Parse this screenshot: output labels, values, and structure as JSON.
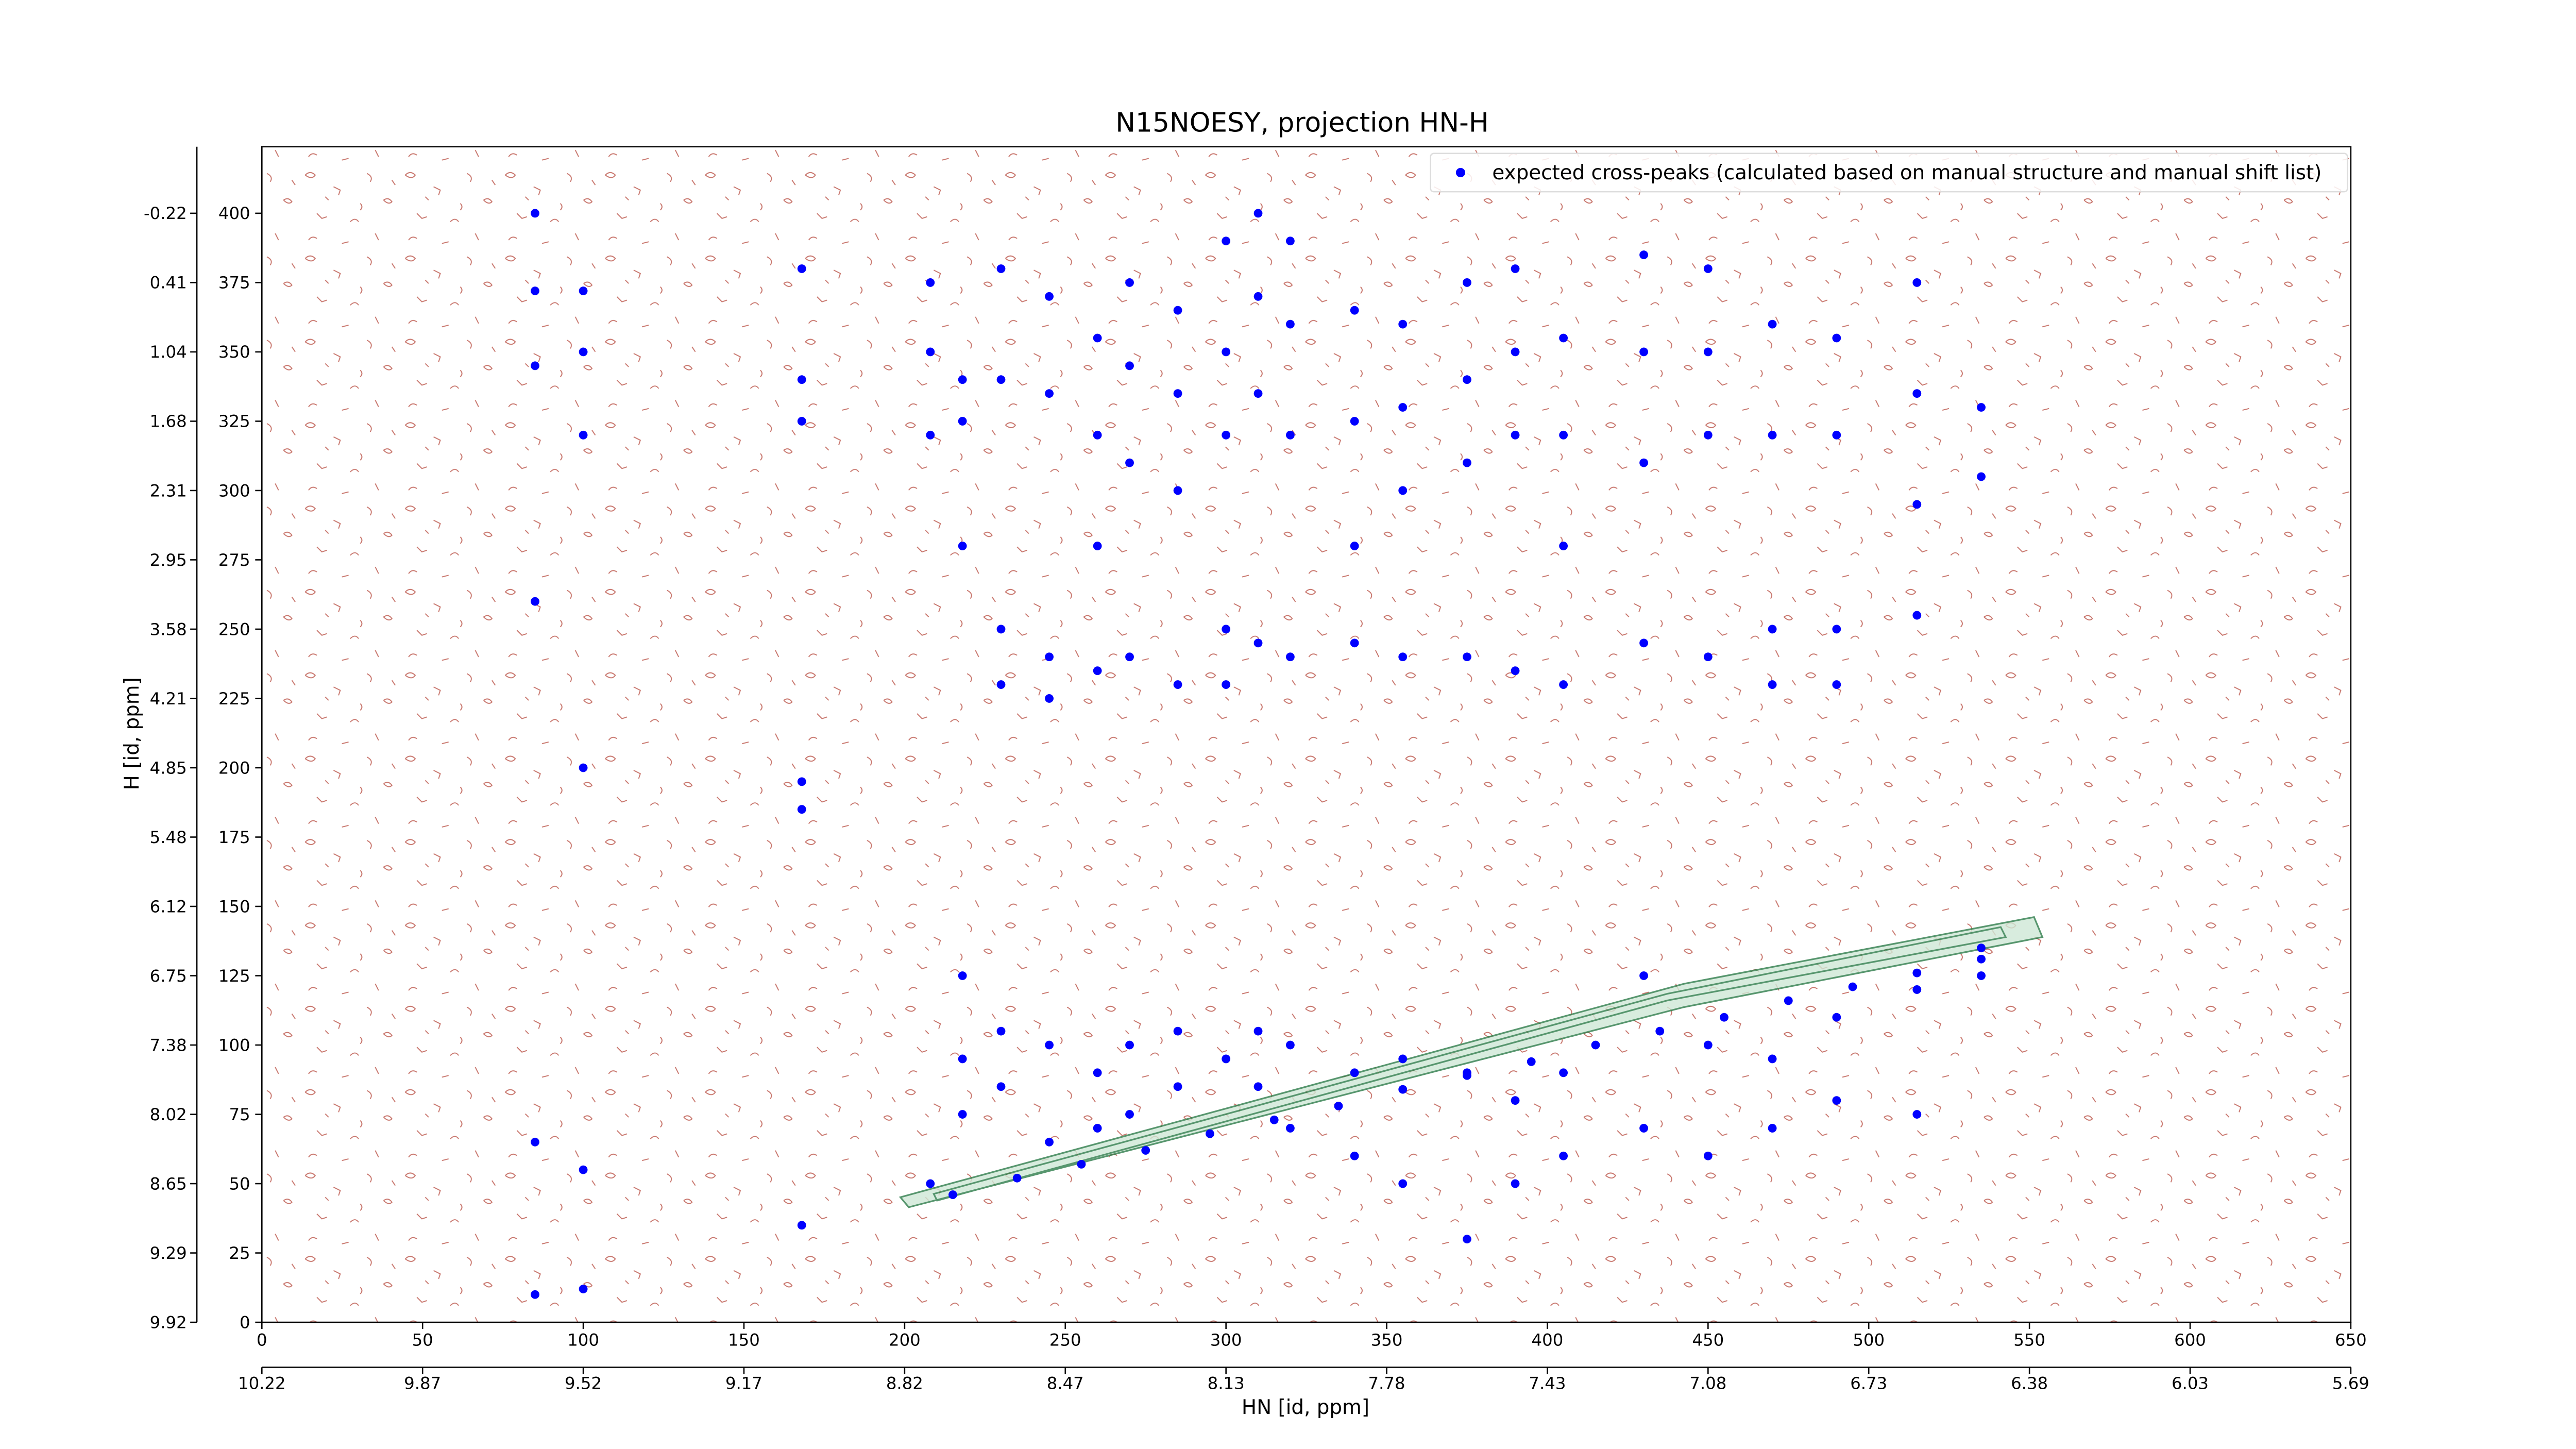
{
  "chart_data": {
    "type": "scatter",
    "title": "N15NOESY, projection HN-H",
    "xlabel": "HN [id, ppm]",
    "ylabel": "H [id, ppm]",
    "xlim": [
      0,
      650
    ],
    "ylim": [
      0,
      424
    ],
    "xticks": [
      0,
      50,
      100,
      150,
      200,
      250,
      300,
      350,
      400,
      450,
      500,
      550,
      600,
      650
    ],
    "yticks": [
      0,
      25,
      50,
      75,
      100,
      125,
      150,
      175,
      200,
      225,
      250,
      275,
      300,
      325,
      350,
      375,
      400
    ],
    "x2ticks": [
      {
        "value": 0,
        "label": "10.22"
      },
      {
        "value": 50,
        "label": "9.87"
      },
      {
        "value": 100,
        "label": "9.52"
      },
      {
        "value": 150,
        "label": "9.17"
      },
      {
        "value": 200,
        "label": "8.82"
      },
      {
        "value": 250,
        "label": "8.47"
      },
      {
        "value": 300,
        "label": "8.13"
      },
      {
        "value": 350,
        "label": "7.78"
      },
      {
        "value": 400,
        "label": "7.43"
      },
      {
        "value": 450,
        "label": "7.08"
      },
      {
        "value": 500,
        "label": "6.73"
      },
      {
        "value": 550,
        "label": "6.38"
      },
      {
        "value": 600,
        "label": "6.03"
      },
      {
        "value": 650,
        "label": "5.69"
      }
    ],
    "y2ticks": [
      {
        "value": 0,
        "label": "9.92"
      },
      {
        "value": 25,
        "label": "9.29"
      },
      {
        "value": 50,
        "label": "8.65"
      },
      {
        "value": 75,
        "label": "8.02"
      },
      {
        "value": 100,
        "label": "7.38"
      },
      {
        "value": 125,
        "label": "6.75"
      },
      {
        "value": 150,
        "label": "6.12"
      },
      {
        "value": 175,
        "label": "5.48"
      },
      {
        "value": 200,
        "label": "4.85"
      },
      {
        "value": 225,
        "label": "4.21"
      },
      {
        "value": 250,
        "label": "3.58"
      },
      {
        "value": 275,
        "label": "2.95"
      },
      {
        "value": 300,
        "label": "2.31"
      },
      {
        "value": 325,
        "label": "1.68"
      },
      {
        "value": 350,
        "label": "1.04"
      },
      {
        "value": 375,
        "label": "0.41"
      },
      {
        "value": 400,
        "label": "-0.22"
      }
    ],
    "legend": "upper right",
    "grid": false,
    "series": [
      {
        "name": "expected cross-peaks (calculated based on manual structure and manual shift list)",
        "color": "#0000ff",
        "x": [
          85,
          85,
          85,
          85,
          85,
          85,
          100,
          100,
          100,
          100,
          100,
          100,
          168,
          168,
          168,
          168,
          168,
          168,
          208,
          208,
          208,
          208,
          218,
          218,
          218,
          218,
          218,
          218,
          230,
          230,
          230,
          230,
          230,
          230,
          245,
          245,
          245,
          245,
          245,
          245,
          260,
          260,
          260,
          260,
          260,
          260,
          270,
          270,
          270,
          270,
          270,
          270,
          285,
          285,
          285,
          285,
          285,
          285,
          300,
          300,
          300,
          300,
          300,
          300,
          310,
          310,
          310,
          310,
          310,
          310,
          320,
          320,
          320,
          320,
          320,
          320,
          340,
          340,
          340,
          340,
          340,
          340,
          355,
          355,
          355,
          355,
          355,
          355,
          375,
          375,
          375,
          375,
          375,
          375,
          390,
          390,
          390,
          390,
          390,
          390,
          405,
          405,
          405,
          405,
          405,
          405,
          430,
          430,
          430,
          430,
          430,
          430,
          450,
          450,
          450,
          450,
          450,
          450,
          470,
          470,
          470,
          470,
          470,
          470,
          490,
          490,
          490,
          490,
          490,
          490,
          515,
          515,
          515,
          515,
          515,
          515,
          535,
          535,
          535,
          535,
          215,
          235,
          255,
          275,
          295,
          315,
          335,
          355,
          375,
          395,
          415,
          435,
          455,
          475,
          495,
          515,
          535
        ],
        "values": [
          400,
          372,
          345,
          260,
          65,
          10,
          372,
          350,
          320,
          200,
          55,
          12,
          380,
          340,
          325,
          195,
          185,
          35,
          375,
          350,
          320,
          50,
          340,
          325,
          280,
          125,
          95,
          75,
          380,
          340,
          250,
          230,
          105,
          85,
          370,
          335,
          240,
          225,
          100,
          65,
          355,
          320,
          280,
          235,
          90,
          70,
          375,
          345,
          310,
          240,
          100,
          75,
          365,
          335,
          300,
          230,
          105,
          85,
          390,
          350,
          320,
          250,
          230,
          95,
          400,
          370,
          335,
          245,
          105,
          85,
          390,
          360,
          320,
          240,
          100,
          70,
          365,
          325,
          280,
          245,
          90,
          60,
          360,
          330,
          300,
          240,
          95,
          50,
          375,
          340,
          310,
          240,
          90,
          30,
          380,
          350,
          320,
          235,
          80,
          50,
          355,
          320,
          280,
          230,
          90,
          60,
          385,
          350,
          310,
          245,
          125,
          70,
          380,
          350,
          320,
          240,
          100,
          60,
          360,
          320,
          250,
          230,
          95,
          70,
          355,
          320,
          250,
          230,
          110,
          80,
          375,
          335,
          295,
          255,
          120,
          75,
          330,
          305,
          135,
          125,
          46,
          52,
          57,
          62,
          68,
          73,
          78,
          84,
          89,
          94,
          100,
          105,
          110,
          116,
          121,
          126,
          131
        ]
      }
    ]
  }
}
